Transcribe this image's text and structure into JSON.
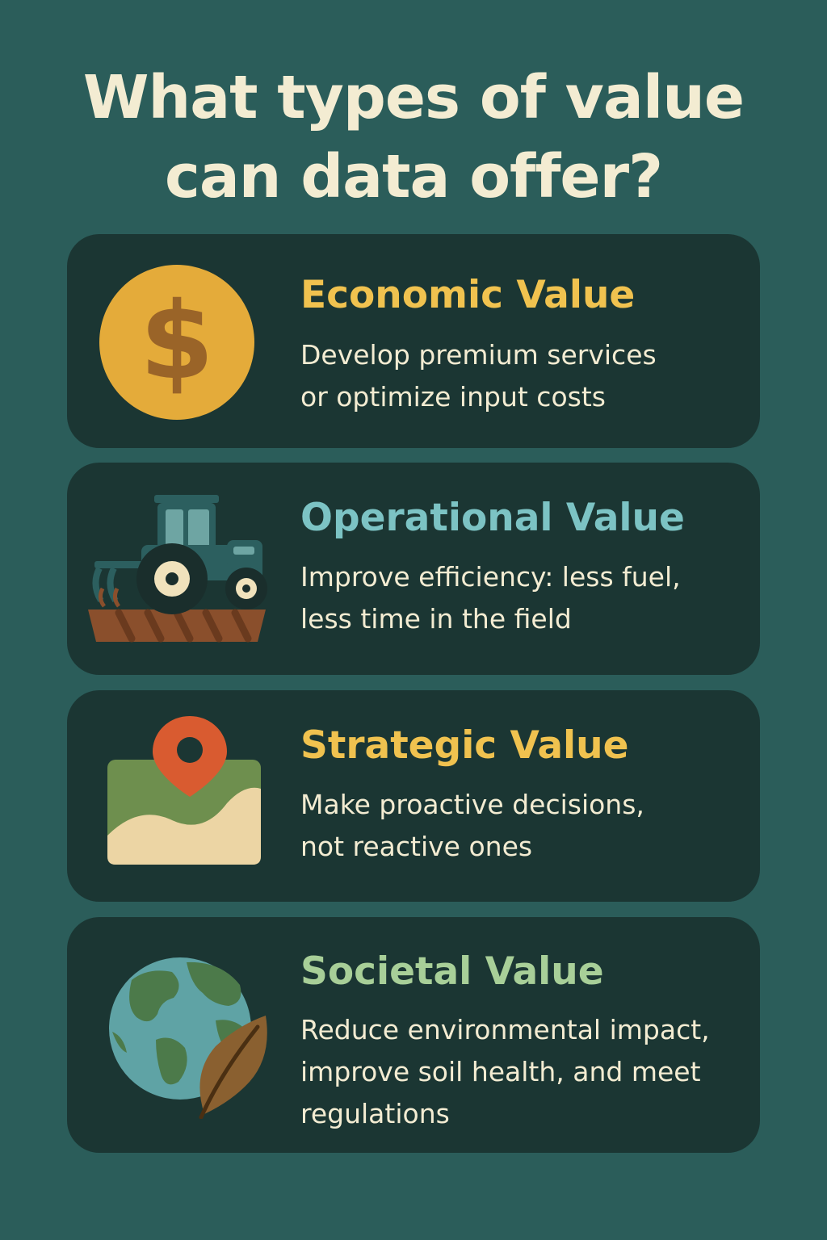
{
  "title": {
    "line1": "What types of value",
    "line2": "can data offer?"
  },
  "colors": {
    "background": "#2b5d5a",
    "card": "#1b3633",
    "title_text": "#f3ecd2",
    "economic": "#f0c24f",
    "operational": "#7cc3c4",
    "strategic": "#f0c24f",
    "societal": "#a8cf98"
  },
  "cards": [
    {
      "icon": "dollar-coin-icon",
      "heading": "Economic Value",
      "lines": [
        "Develop premium services",
        "or optimize input costs"
      ]
    },
    {
      "icon": "tractor-icon",
      "heading": "Operational Value",
      "lines": [
        "Improve efficiency: less fuel,",
        "less time in the field"
      ]
    },
    {
      "icon": "map-pin-icon",
      "heading": "Strategic Value",
      "lines": [
        "Make proactive decisions,",
        "not reactive ones"
      ]
    },
    {
      "icon": "globe-leaf-icon",
      "heading": "Societal Value",
      "lines": [
        "Reduce environmental impact,",
        "improve soil health, and meet",
        "regulations"
      ]
    }
  ]
}
